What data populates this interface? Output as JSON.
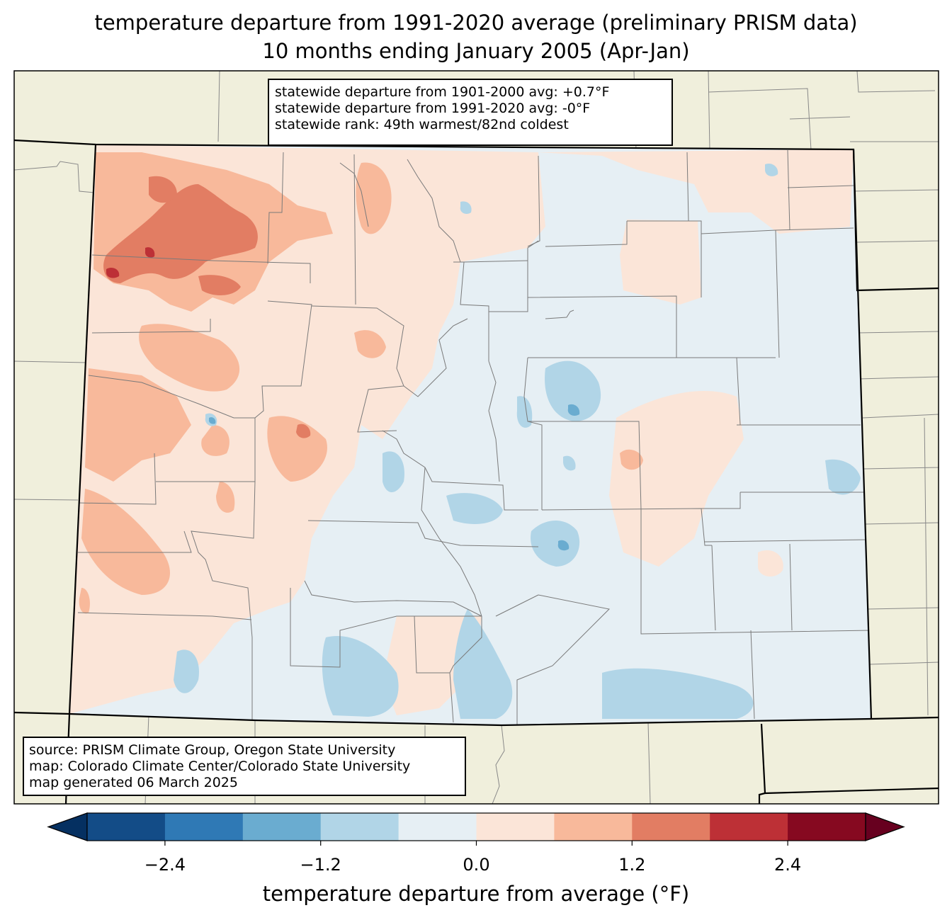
{
  "title_line1": "temperature departure from 1991-2020 average (preliminary PRISM data)",
  "title_line2": "10 months ending January 2005 (Apr-Jan)",
  "stats": {
    "line1": "statewide departure from 1901-2000 avg: +0.7°F",
    "line2": "statewide departure from 1991-2020 avg: -0°F",
    "line3": "statewide rank: 49th warmest/82nd coldest"
  },
  "credits": {
    "line1": "source: PRISM Climate Group, Oregon State University",
    "line2": "map: Colorado Climate Center/Colorado State University",
    "line3": "map generated 06 March 2025"
  },
  "colorbar": {
    "label": "temperature departure from average (°F)",
    "ticks": [
      "−2.4",
      "−1.2",
      "0.0",
      "1.2",
      "2.4"
    ],
    "colors": [
      "#053061",
      "#134c87",
      "#2f79b5",
      "#6aacd0",
      "#b1d5e7",
      "#e6eff4",
      "#fbe5d8",
      "#f8b99b",
      "#e27d63",
      "#bd3036",
      "#860920",
      "#67001f"
    ]
  },
  "colors": {
    "land_background": "#f0efdc",
    "red_strong": "#e27d63",
    "red_mid": "#f8b99b",
    "red_light": "#fbe5d8",
    "blue_light": "#e6eff4",
    "blue_mid": "#b1d5e7",
    "blue_strong": "#6aacd0",
    "red_darkest": "#bd3036"
  }
}
